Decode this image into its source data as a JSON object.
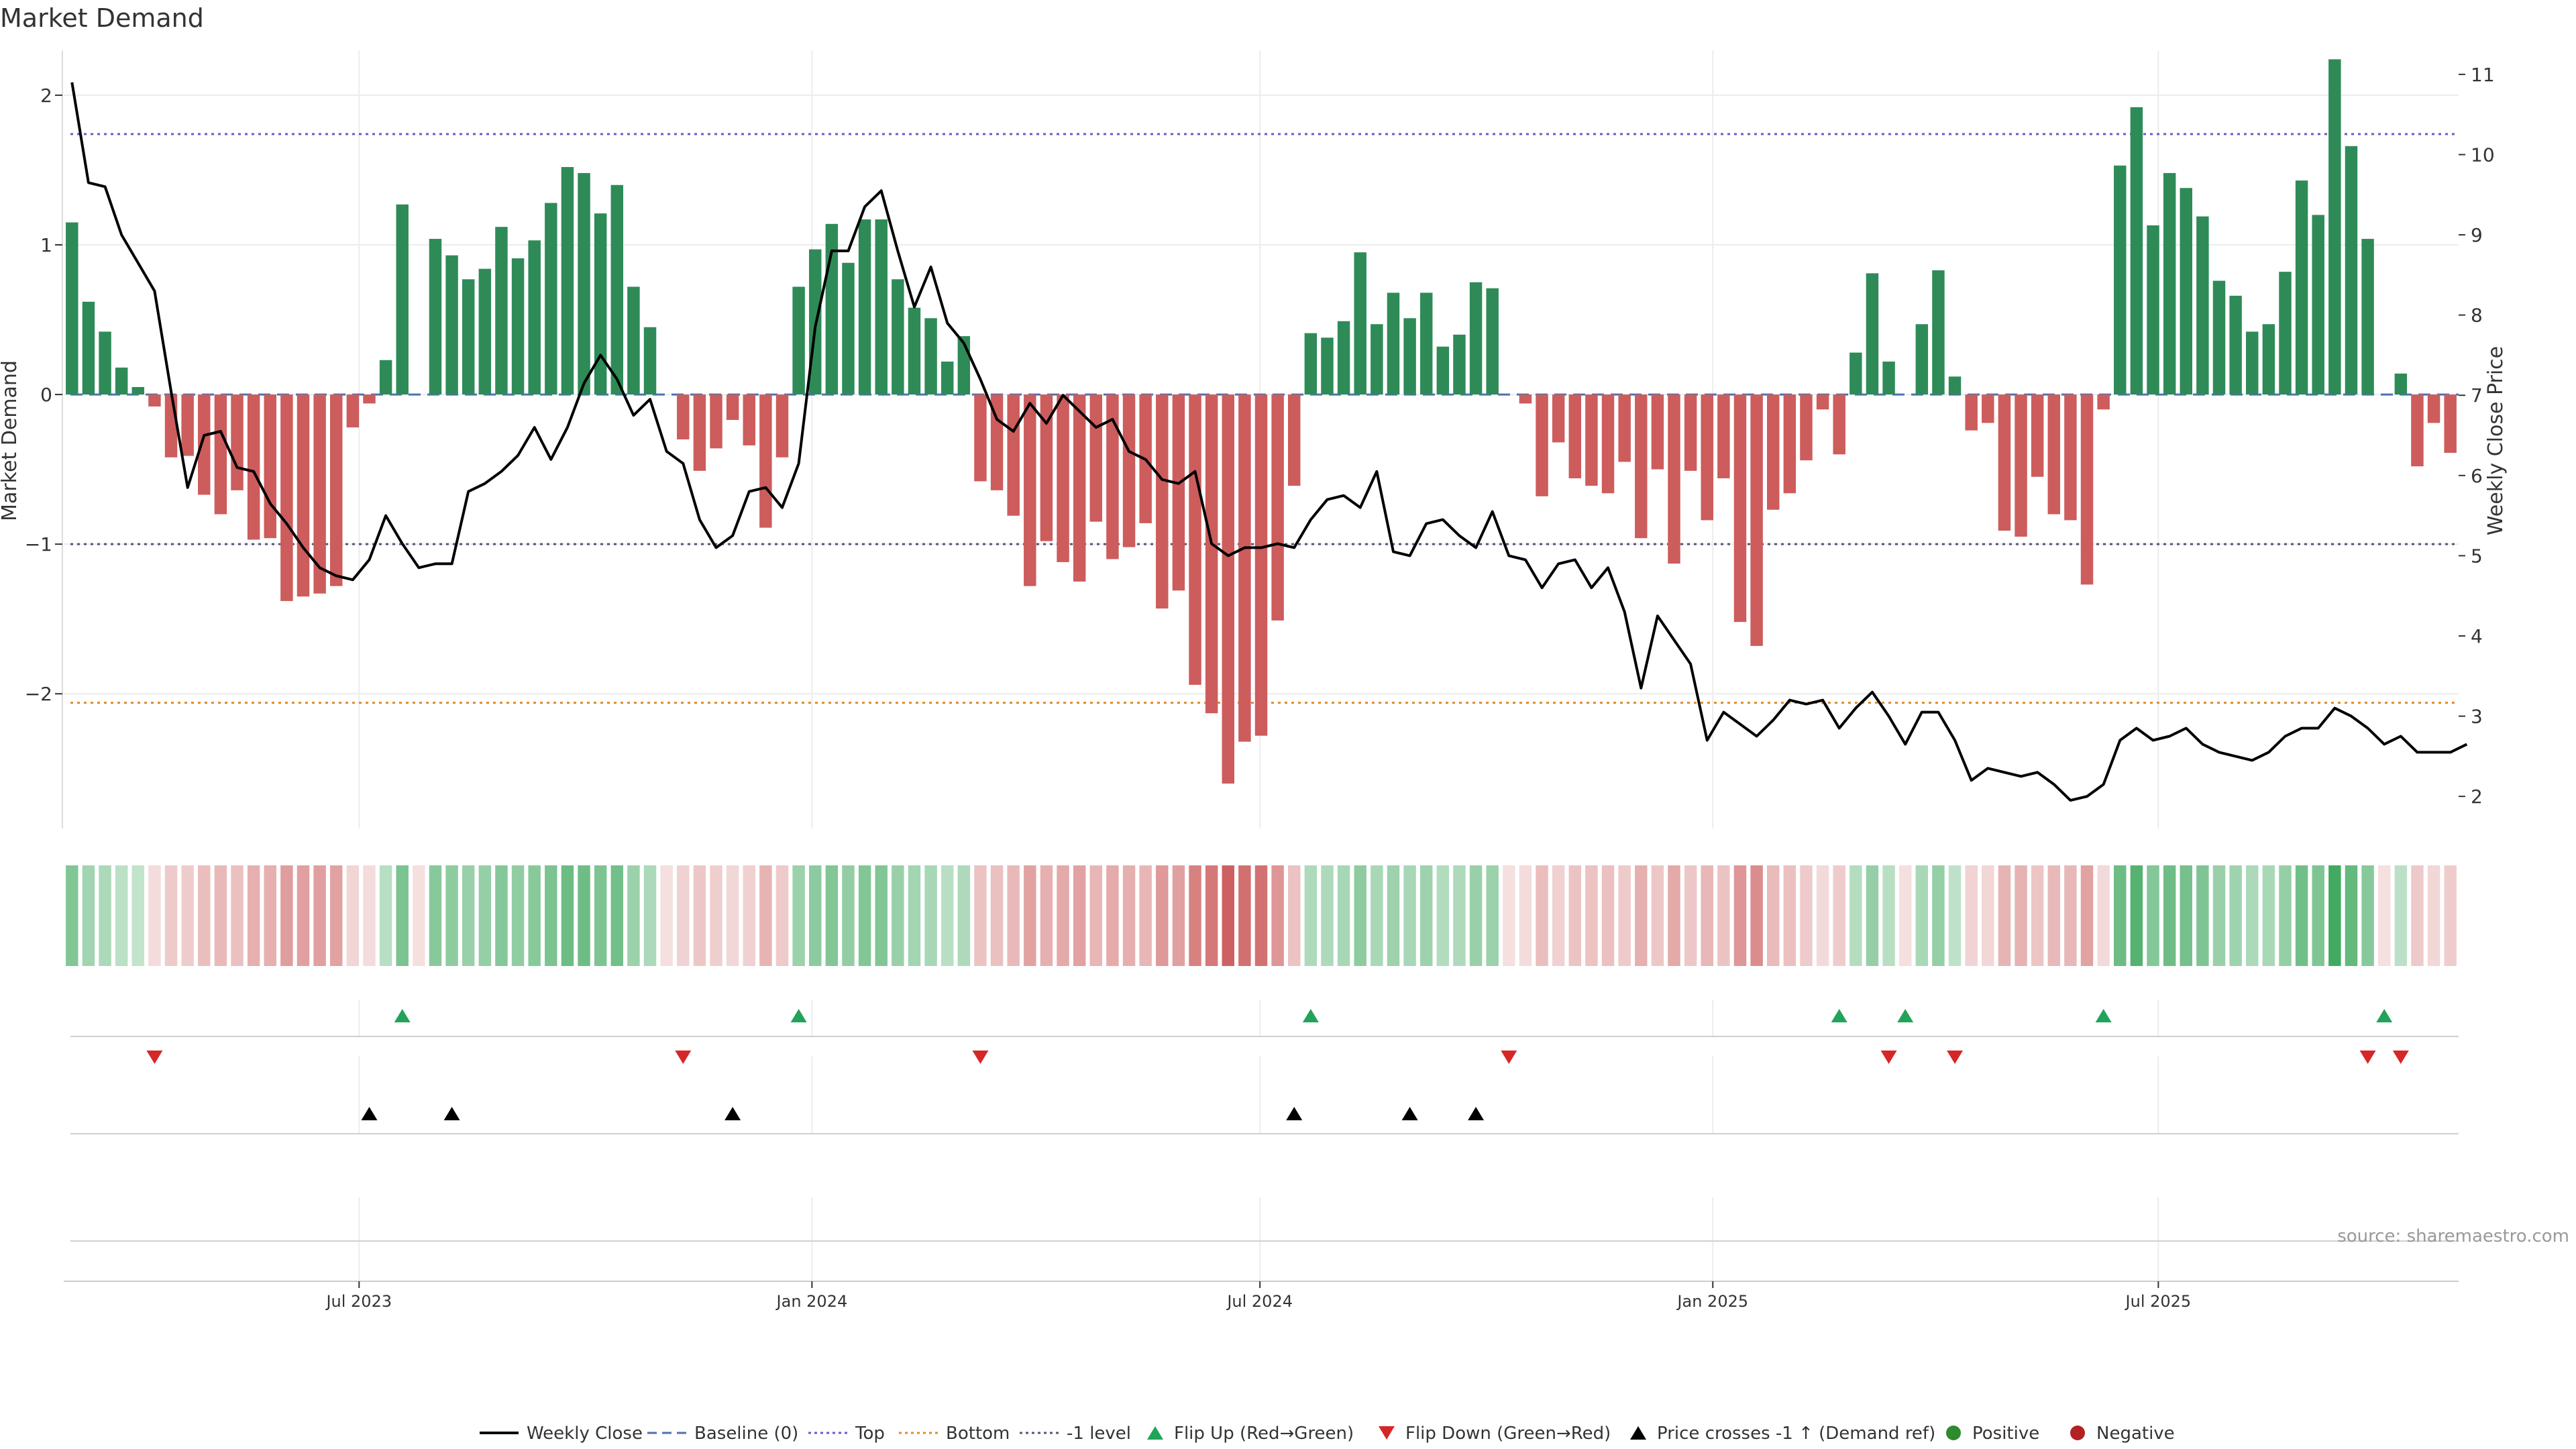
{
  "title": "Market Demand",
  "source": "source: sharemaestro.com",
  "colors": {
    "positive_bar": "#2e8b57",
    "negative_bar": "#cd5c5c",
    "price_line": "#000000",
    "baseline": "#4c72b0",
    "top_line": "#6a5acd",
    "bottom_line": "#e08a2c",
    "minus_one_line": "#555577",
    "flip_up": "#22a35a",
    "flip_down": "#d62728",
    "price_cross": "#000000",
    "grid": "#ececec"
  },
  "chart_data": {
    "type": "bar",
    "title": "Market Demand",
    "ylabel": "Market Demand",
    "y2label": "Weekly Close Price",
    "ylim": [
      -2.9,
      2.3
    ],
    "y2lim": [
      1.6,
      11.3
    ],
    "yticks": [
      "2",
      "1",
      "0",
      "−1",
      "−2"
    ],
    "yticks_values": [
      2,
      1,
      0,
      -1,
      -2
    ],
    "y2ticks_values": [
      2,
      3,
      4,
      5,
      6,
      7,
      8,
      9,
      10,
      11
    ],
    "x_start": "2023-03-03",
    "x_end": "2025-10-31",
    "xticks": [
      {
        "date": "2023-07-01",
        "label": "Jul 2023"
      },
      {
        "date": "2024-01-01",
        "label": "Jan 2024"
      },
      {
        "date": "2024-07-01",
        "label": "Jul 2024"
      },
      {
        "date": "2025-01-01",
        "label": "Jan 2025"
      },
      {
        "date": "2025-07-01",
        "label": "Jul 2025"
      }
    ],
    "reference_lines": {
      "baseline": 0,
      "top": 1.74,
      "bottom": -2.06,
      "minus_one": -1
    },
    "demand": [
      1.15,
      0.62,
      0.42,
      0.18,
      0.05,
      -0.08,
      -0.42,
      -0.41,
      -0.67,
      -0.8,
      -0.64,
      -0.97,
      -0.96,
      -1.38,
      -1.35,
      -1.33,
      -1.28,
      -0.22,
      -0.06,
      0.23,
      1.27,
      0.0,
      1.04,
      0.93,
      0.77,
      0.84,
      1.12,
      0.91,
      1.03,
      1.28,
      1.52,
      1.48,
      1.21,
      1.4,
      0.72,
      0.45,
      0.0,
      -0.3,
      -0.51,
      -0.36,
      -0.17,
      -0.34,
      -0.89,
      -0.42,
      0.72,
      0.97,
      1.14,
      0.88,
      1.17,
      1.17,
      0.77,
      0.58,
      0.51,
      0.22,
      0.39,
      -0.58,
      -0.64,
      -0.81,
      -1.28,
      -0.98,
      -1.12,
      -1.25,
      -0.85,
      -1.1,
      -1.02,
      -0.86,
      -1.43,
      -1.31,
      -1.94,
      -2.13,
      -2.6,
      -2.32,
      -2.28,
      -1.51,
      -0.61,
      0.41,
      0.38,
      0.49,
      0.95,
      0.47,
      0.68,
      0.51,
      0.68,
      0.32,
      0.4,
      0.75,
      0.71,
      0.0,
      -0.06,
      -0.68,
      -0.32,
      -0.56,
      -0.61,
      -0.66,
      -0.45,
      -0.96,
      -0.5,
      -1.13,
      -0.51,
      -0.84,
      -0.56,
      -1.52,
      -1.68,
      -0.77,
      -0.66,
      -0.44,
      -0.1,
      -0.4,
      0.28,
      0.81,
      0.22,
      0.0,
      0.47,
      0.83,
      0.12,
      -0.24,
      -0.19,
      -0.91,
      -0.95,
      -0.55,
      -0.8,
      -0.84,
      -1.27,
      -0.1,
      1.53,
      1.92,
      1.13,
      1.48,
      1.38,
      1.19,
      0.76,
      0.66,
      0.42,
      0.47,
      0.82,
      1.43,
      1.2,
      2.24,
      1.66,
      1.04,
      0.0,
      0.14,
      -0.48,
      -0.19,
      -0.39
    ],
    "weekly_close": [
      10.9,
      9.65,
      9.6,
      9.0,
      8.65,
      8.3,
      7.05,
      5.85,
      6.5,
      6.55,
      6.1,
      6.05,
      5.65,
      5.4,
      5.1,
      4.85,
      4.75,
      4.7,
      4.95,
      5.5,
      5.15,
      4.85,
      4.9,
      4.9,
      5.8,
      5.9,
      6.05,
      6.25,
      6.6,
      6.2,
      6.6,
      7.15,
      7.5,
      7.2,
      6.75,
      6.95,
      6.3,
      6.15,
      5.45,
      5.1,
      5.25,
      5.8,
      5.85,
      5.6,
      6.15,
      7.85,
      8.8,
      8.8,
      9.35,
      9.55,
      8.8,
      8.1,
      8.6,
      7.9,
      7.65,
      7.2,
      6.7,
      6.55,
      6.9,
      6.65,
      7.0,
      6.8,
      6.6,
      6.7,
      6.3,
      6.2,
      5.95,
      5.9,
      6.05,
      5.15,
      5.0,
      5.1,
      5.1,
      5.15,
      5.1,
      5.45,
      5.7,
      5.75,
      5.6,
      6.05,
      5.05,
      5.0,
      5.4,
      5.45,
      5.25,
      5.1,
      5.55,
      5.0,
      4.95,
      4.6,
      4.9,
      4.95,
      4.6,
      4.85,
      4.3,
      3.35,
      4.25,
      3.95,
      3.65,
      2.7,
      3.05,
      2.9,
      2.75,
      2.95,
      3.2,
      3.15,
      3.2,
      2.85,
      3.1,
      3.3,
      3.0,
      2.65,
      3.05,
      3.05,
      2.7,
      2.2,
      2.35,
      2.3,
      2.25,
      2.3,
      2.15,
      1.95,
      2.0,
      2.15,
      2.7,
      2.85,
      2.7,
      2.75,
      2.85,
      2.65,
      2.55,
      2.5,
      2.45,
      2.55,
      2.75,
      2.85,
      2.85,
      3.1,
      3.0,
      2.85,
      2.65,
      2.75,
      2.55,
      2.55,
      2.55,
      2.65
    ],
    "flip_up_index": [
      20,
      44,
      75,
      107,
      111,
      123,
      140
    ],
    "flip_down_index": [
      5,
      37,
      55,
      87,
      110,
      114,
      139,
      141
    ],
    "price_cross_index": [
      18,
      23,
      40,
      74,
      81,
      85
    ],
    "legend": [
      "Weekly Close",
      "Baseline (0)",
      "Top",
      "Bottom",
      "-1 level",
      "Flip Up (Red→Green)",
      "Flip Down (Green→Red)",
      "Price crosses -1 ↑ (Demand ref)",
      "Positive",
      "Negative"
    ],
    "legend_placement": "bottom-center"
  }
}
